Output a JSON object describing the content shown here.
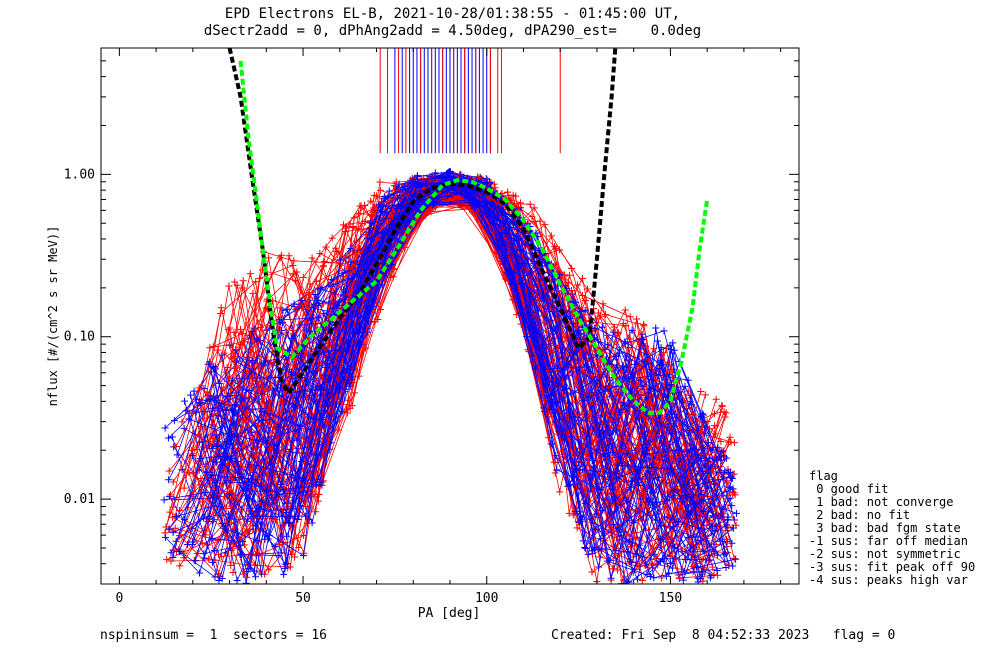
{
  "title_line1": "EPD Electrons EL-B, 2021-10-28/01:38:55 - 01:45:00 UT,",
  "title_line2": "dSectr2add = 0, dPhAng2add = 4.50deg, dPA290_est=    0.0deg",
  "footer_left": "nspininsum =  1  sectors = 16",
  "footer_right": "Created: Fri Sep  8 04:52:33 2023   flag = 0",
  "legend": {
    "title": "flag",
    "items": [
      " 0 good fit",
      " 1 bad: not converge",
      " 2 bad: no fit",
      " 3 bad: bad fgm state",
      "-1 sus: far off median",
      "-2 sus: not symmetric",
      "-3 sus: fit peak off 90",
      "-4 sus: peaks high var"
    ]
  },
  "colors": {
    "blue_series": "#0000ff",
    "red_series": "#ff0000",
    "fit_black": "#000000",
    "fit_green": "#00ff00"
  },
  "chart_data": {
    "type": "line",
    "title": "EPD Electrons EL-B, 2021-10-28/01:38:55 - 01:45:00 UT,",
    "subtitle": "dSectr2add = 0, dPhAng2add = 4.50deg, dPA290_est=    0.0deg",
    "xlabel": "PA [deg]",
    "ylabel": "nflux [#/(cm^2 s sr MeV)]",
    "xlim": [
      -5,
      185
    ],
    "ylim": [
      0.003,
      6.0
    ],
    "yscale": "log",
    "x_ticks": [
      0,
      50,
      100,
      150
    ],
    "x_tick_labels": [
      "0",
      "50",
      "100",
      "150"
    ],
    "y_ticks": [
      0.01,
      0.1,
      1.0
    ],
    "y_tick_labels": [
      "0.01",
      "0.10",
      "1.00"
    ],
    "grid": false,
    "legend_position": "right",
    "envelopes": [
      {
        "color": "blue",
        "x": [
          13,
          20,
          30,
          40,
          50,
          60,
          70,
          80,
          90,
          100,
          110,
          120,
          130,
          140,
          150,
          160,
          168
        ],
        "y_low": [
          0.0045,
          0.0035,
          0.003,
          0.003,
          0.004,
          0.03,
          0.15,
          0.55,
          0.75,
          0.55,
          0.12,
          0.012,
          0.003,
          0.003,
          0.003,
          0.003,
          0.004
        ],
        "y_high": [
          0.03,
          0.06,
          0.09,
          0.14,
          0.17,
          0.3,
          0.7,
          1.0,
          1.05,
          0.95,
          0.6,
          0.25,
          0.12,
          0.12,
          0.11,
          0.03,
          0.015
        ]
      },
      {
        "color": "red",
        "x": [
          13,
          20,
          30,
          40,
          50,
          60,
          70,
          80,
          90,
          100,
          110,
          120,
          130,
          140,
          150,
          160,
          168
        ],
        "y_low": [
          0.004,
          0.0035,
          0.003,
          0.003,
          0.004,
          0.02,
          0.12,
          0.5,
          0.7,
          0.5,
          0.1,
          0.01,
          0.003,
          0.003,
          0.003,
          0.003,
          0.004
        ],
        "y_high": [
          0.02,
          0.04,
          0.25,
          0.35,
          0.3,
          0.5,
          0.95,
          0.97,
          1.0,
          0.97,
          0.8,
          0.35,
          0.2,
          0.15,
          0.08,
          0.05,
          0.035
        ]
      }
    ],
    "fit_curves": [
      {
        "name": "black fit",
        "color": "black",
        "dashed": true,
        "x": [
          30,
          33,
          36,
          39,
          42,
          44,
          46,
          50,
          55,
          60,
          65,
          70,
          75,
          80,
          85,
          90,
          95,
          100,
          105,
          110,
          115,
          120,
          125,
          128,
          130,
          132,
          134,
          135
        ],
        "y": [
          6.0,
          3.0,
          1.0,
          0.35,
          0.1,
          0.055,
          0.045,
          0.06,
          0.09,
          0.13,
          0.18,
          0.28,
          0.45,
          0.68,
          0.82,
          0.88,
          0.85,
          0.78,
          0.66,
          0.46,
          0.26,
          0.15,
          0.085,
          0.1,
          0.3,
          1.0,
          3.0,
          6.0
        ]
      },
      {
        "name": "green fit",
        "color": "green",
        "dashed": true,
        "x": [
          33,
          35,
          37,
          39,
          41,
          43,
          47,
          52,
          58,
          64,
          70,
          76,
          82,
          88,
          92,
          96,
          100,
          105,
          110,
          115,
          120,
          125,
          130,
          135,
          140,
          144,
          147,
          150,
          153,
          156,
          158,
          160
        ],
        "y": [
          5.0,
          1.8,
          0.8,
          0.35,
          0.16,
          0.085,
          0.075,
          0.1,
          0.13,
          0.17,
          0.22,
          0.36,
          0.6,
          0.86,
          0.92,
          0.9,
          0.82,
          0.7,
          0.52,
          0.35,
          0.21,
          0.13,
          0.085,
          0.055,
          0.04,
          0.034,
          0.034,
          0.04,
          0.07,
          0.15,
          0.35,
          0.7
        ]
      }
    ],
    "top_tick_marks": {
      "blue_pa": [
        75,
        77,
        79,
        80,
        81,
        82,
        83,
        84,
        85,
        86,
        87,
        88,
        89,
        90,
        91,
        92,
        93,
        94,
        95,
        96,
        97,
        98,
        99,
        100,
        101
      ],
      "red_pa": [
        71,
        73,
        76,
        78,
        82,
        85,
        88,
        91,
        94,
        97,
        101,
        103,
        104,
        120
      ]
    }
  }
}
